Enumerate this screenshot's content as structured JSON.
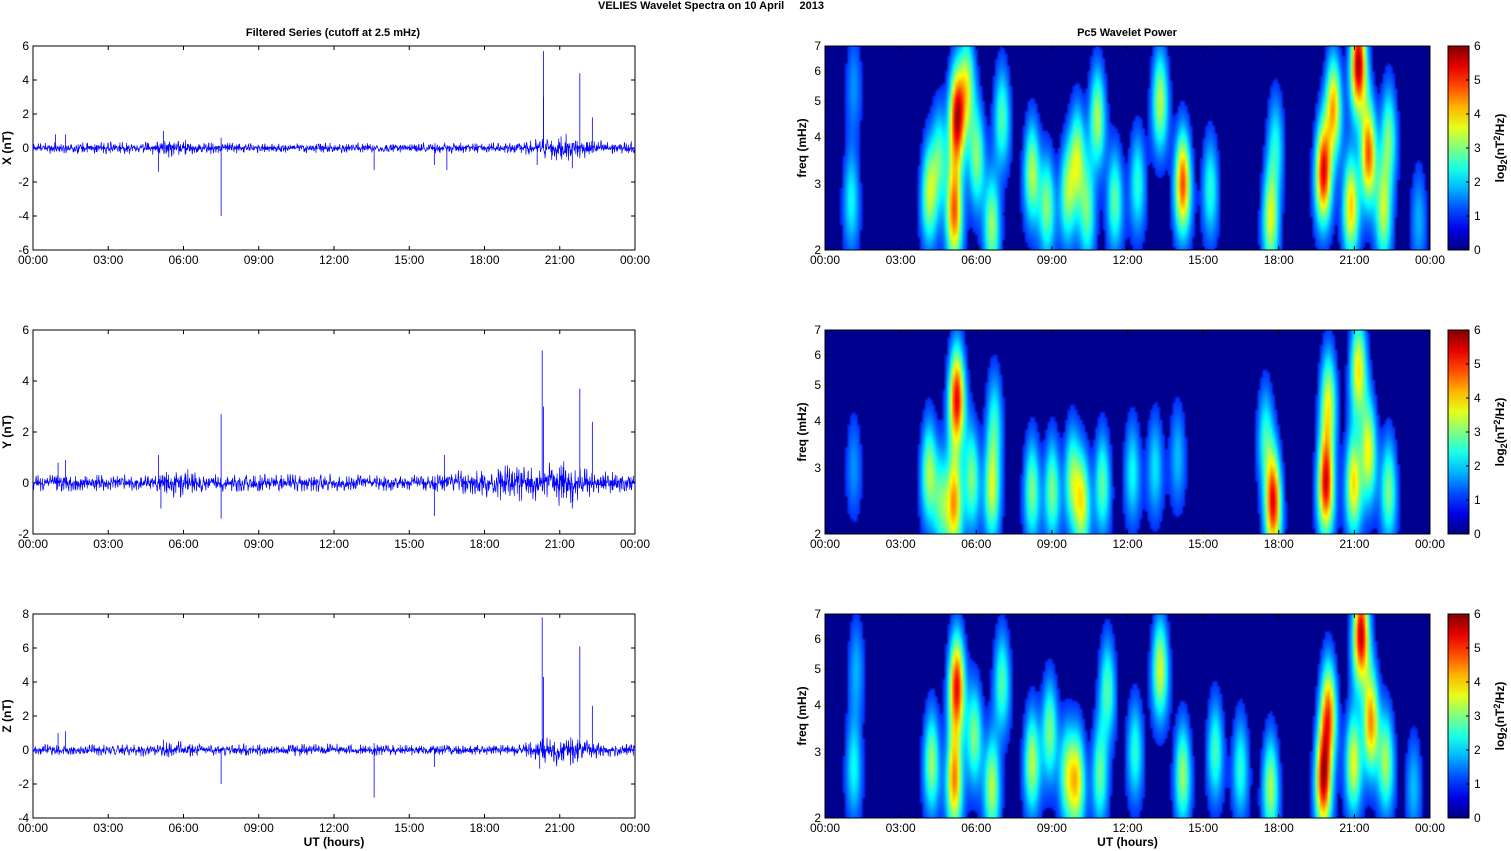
{
  "figure_title": "VELIES Wavelet Spectra on 10 April     2013",
  "left_title": "Filtered Series (cutoff at 2.5 mHz)",
  "right_title": "Pc5 Wavelet Power",
  "colors": {
    "line": "#0000ff",
    "axes": "#000000",
    "heat_bg": "#00008f"
  },
  "chart_data": [
    {
      "type": "line",
      "ylabel": "X (nT)",
      "xlabel": "",
      "x_range_hours": [
        0,
        24
      ],
      "ylim": [
        -6,
        6
      ],
      "yticks": [
        "-6",
        "-4",
        "-2",
        "0",
        "2",
        "4",
        "6"
      ],
      "xticks": [
        "00:00",
        "03:00",
        "06:00",
        "09:00",
        "12:00",
        "15:00",
        "18:00",
        "21:00",
        "00:00"
      ],
      "noise_envelope": [
        {
          "t": 0,
          "amp": 0.35
        },
        {
          "t": 5,
          "amp": 0.4
        },
        {
          "t": 5.5,
          "amp": 0.7
        },
        {
          "t": 6.5,
          "amp": 0.4
        },
        {
          "t": 9,
          "amp": 0.3
        },
        {
          "t": 19,
          "amp": 0.35
        },
        {
          "t": 20.2,
          "amp": 0.6
        },
        {
          "t": 21,
          "amp": 1.0
        },
        {
          "t": 22.5,
          "amp": 0.5
        },
        {
          "t": 24,
          "amp": 0.4
        }
      ],
      "spikes": [
        {
          "t": 0.9,
          "v": 0.8
        },
        {
          "t": 1.3,
          "v": 0.8
        },
        {
          "t": 5.0,
          "v": -1.4
        },
        {
          "t": 5.2,
          "v": 1.0
        },
        {
          "t": 7.5,
          "v": -4.0
        },
        {
          "t": 7.5,
          "v": 0.6
        },
        {
          "t": 13.6,
          "v": -1.3
        },
        {
          "t": 16.0,
          "v": -1.0
        },
        {
          "t": 16.5,
          "v": -1.3
        },
        {
          "t": 20.1,
          "v": -1.0
        },
        {
          "t": 20.35,
          "v": 5.7
        },
        {
          "t": 20.35,
          "v": 3.0
        },
        {
          "t": 21.8,
          "v": 4.4
        },
        {
          "t": 22.3,
          "v": 1.8
        },
        {
          "t": 21.5,
          "v": -1.2
        }
      ]
    },
    {
      "type": "line",
      "ylabel": "Y (nT)",
      "xlabel": "",
      "x_range_hours": [
        0,
        24
      ],
      "ylim": [
        -2,
        6
      ],
      "yticks": [
        "-2",
        "0",
        "2",
        "4",
        "6"
      ],
      "xticks": [
        "00:00",
        "03:00",
        "06:00",
        "09:00",
        "12:00",
        "15:00",
        "18:00",
        "21:00",
        "00:00"
      ],
      "noise_envelope": [
        {
          "t": 0,
          "amp": 0.35
        },
        {
          "t": 5,
          "amp": 0.4
        },
        {
          "t": 5.5,
          "amp": 0.7
        },
        {
          "t": 7,
          "amp": 0.4
        },
        {
          "t": 16,
          "amp": 0.35
        },
        {
          "t": 17.5,
          "amp": 0.6
        },
        {
          "t": 20.2,
          "amp": 0.8
        },
        {
          "t": 21,
          "amp": 1.0
        },
        {
          "t": 22.5,
          "amp": 0.5
        },
        {
          "t": 24,
          "amp": 0.4
        }
      ],
      "spikes": [
        {
          "t": 1.0,
          "v": 0.8
        },
        {
          "t": 1.3,
          "v": 0.9
        },
        {
          "t": 5.0,
          "v": 1.1
        },
        {
          "t": 5.1,
          "v": -1.0
        },
        {
          "t": 7.5,
          "v": 2.7
        },
        {
          "t": 7.5,
          "v": -1.4
        },
        {
          "t": 16.0,
          "v": -1.3
        },
        {
          "t": 16.4,
          "v": 1.1
        },
        {
          "t": 20.3,
          "v": 5.2
        },
        {
          "t": 20.35,
          "v": 3.0
        },
        {
          "t": 21.8,
          "v": 3.7
        },
        {
          "t": 22.3,
          "v": 2.4
        },
        {
          "t": 21.5,
          "v": -1.0
        }
      ]
    },
    {
      "type": "line",
      "ylabel": "Z (nT)",
      "xlabel": "UT (hours)",
      "x_range_hours": [
        0,
        24
      ],
      "ylim": [
        -4,
        8
      ],
      "yticks": [
        "-4",
        "-2",
        "0",
        "2",
        "4",
        "6",
        "8"
      ],
      "xticks": [
        "00:00",
        "03:00",
        "06:00",
        "09:00",
        "12:00",
        "15:00",
        "18:00",
        "21:00",
        "00:00"
      ],
      "noise_envelope": [
        {
          "t": 0,
          "amp": 0.35
        },
        {
          "t": 5,
          "amp": 0.4
        },
        {
          "t": 5.5,
          "amp": 0.6
        },
        {
          "t": 7,
          "amp": 0.4
        },
        {
          "t": 19,
          "amp": 0.35
        },
        {
          "t": 20.2,
          "amp": 0.7
        },
        {
          "t": 21,
          "amp": 1.1
        },
        {
          "t": 22.5,
          "amp": 0.5
        },
        {
          "t": 24,
          "amp": 0.4
        }
      ],
      "spikes": [
        {
          "t": 1.0,
          "v": 1.0
        },
        {
          "t": 1.3,
          "v": 1.1
        },
        {
          "t": 5.2,
          "v": 0.6
        },
        {
          "t": 7.5,
          "v": -2.0
        },
        {
          "t": 13.6,
          "v": -2.8
        },
        {
          "t": 13.6,
          "v": 0.4
        },
        {
          "t": 16.0,
          "v": -1.0
        },
        {
          "t": 20.3,
          "v": 7.8
        },
        {
          "t": 20.35,
          "v": 4.3
        },
        {
          "t": 21.8,
          "v": 6.1
        },
        {
          "t": 22.3,
          "v": 2.6
        },
        {
          "t": 20.2,
          "v": -1.1
        }
      ]
    },
    {
      "type": "heatmap",
      "ylabel": "freq (mHz)",
      "xlabel": "",
      "x_range_hours": [
        0,
        24
      ],
      "y_scale": "log",
      "ylim": [
        2,
        7
      ],
      "yticks": [
        "2",
        "3",
        "4",
        "5",
        "6",
        "7"
      ],
      "xticks": [
        "00:00",
        "03:00",
        "06:00",
        "09:00",
        "12:00",
        "15:00",
        "18:00",
        "21:00",
        "00:00"
      ],
      "colorbar_label": "log2(nT^2/Hz)",
      "colorbar_range": [
        0,
        6
      ],
      "colorbar_ticks": [
        "0",
        "1",
        "2",
        "3",
        "4",
        "5",
        "6"
      ],
      "colormap": "jet",
      "blobs": [
        {
          "t": 1.0,
          "f": 2.7,
          "p": 1.8
        },
        {
          "t": 1.1,
          "f": 5.5,
          "p": 1.0
        },
        {
          "t": 4.1,
          "f": 2.8,
          "p": 2.9
        },
        {
          "t": 4.5,
          "f": 3.5,
          "p": 2.2
        },
        {
          "t": 5.1,
          "f": 2.5,
          "p": 4.5
        },
        {
          "t": 5.2,
          "f": 4.5,
          "p": 5.3
        },
        {
          "t": 5.6,
          "f": 5.5,
          "p": 3.0
        },
        {
          "t": 6.0,
          "f": 3.5,
          "p": 2.6
        },
        {
          "t": 6.6,
          "f": 2.3,
          "p": 2.8
        },
        {
          "t": 7.0,
          "f": 4.5,
          "p": 2.3
        },
        {
          "t": 8.2,
          "f": 3.2,
          "p": 3.0
        },
        {
          "t": 8.8,
          "f": 2.6,
          "p": 2.6
        },
        {
          "t": 9.6,
          "f": 2.8,
          "p": 2.5
        },
        {
          "t": 10.0,
          "f": 3.5,
          "p": 3.0
        },
        {
          "t": 10.4,
          "f": 2.5,
          "p": 2.3
        },
        {
          "t": 10.8,
          "f": 4.5,
          "p": 2.9
        },
        {
          "t": 11.5,
          "f": 2.7,
          "p": 2.4
        },
        {
          "t": 12.4,
          "f": 3.0,
          "p": 2.0
        },
        {
          "t": 13.3,
          "f": 5.0,
          "p": 3.0
        },
        {
          "t": 14.2,
          "f": 3.0,
          "p": 4.7
        },
        {
          "t": 15.3,
          "f": 2.9,
          "p": 2.0
        },
        {
          "t": 17.7,
          "f": 2.4,
          "p": 3.2
        },
        {
          "t": 17.9,
          "f": 3.8,
          "p": 1.8
        },
        {
          "t": 19.8,
          "f": 3.2,
          "p": 5.2
        },
        {
          "t": 20.2,
          "f": 4.8,
          "p": 4.0
        },
        {
          "t": 20.9,
          "f": 2.6,
          "p": 3.8
        },
        {
          "t": 21.2,
          "f": 6.3,
          "p": 5.8
        },
        {
          "t": 21.6,
          "f": 3.6,
          "p": 4.6
        },
        {
          "t": 22.2,
          "f": 2.5,
          "p": 2.9
        },
        {
          "t": 22.4,
          "f": 4.0,
          "p": 2.5
        },
        {
          "t": 23.6,
          "f": 2.4,
          "p": 1.2
        }
      ]
    },
    {
      "type": "heatmap",
      "ylabel": "freq (mHz)",
      "xlabel": "",
      "x_range_hours": [
        0,
        24
      ],
      "y_scale": "log",
      "ylim": [
        2,
        7
      ],
      "yticks": [
        "2",
        "3",
        "4",
        "5",
        "6",
        "7"
      ],
      "xticks": [
        "00:00",
        "03:00",
        "06:00",
        "09:00",
        "12:00",
        "15:00",
        "18:00",
        "21:00",
        "00:00"
      ],
      "colorbar_label": "log2(nT^2/Hz)",
      "colorbar_range": [
        0,
        6
      ],
      "colorbar_ticks": [
        "0",
        "1",
        "2",
        "3",
        "4",
        "5",
        "6"
      ],
      "colormap": "jet",
      "blobs": [
        {
          "t": 1.1,
          "f": 3.0,
          "p": 1.0
        },
        {
          "t": 4.1,
          "f": 2.9,
          "p": 2.9
        },
        {
          "t": 4.6,
          "f": 2.4,
          "p": 2.2
        },
        {
          "t": 5.1,
          "f": 2.4,
          "p": 4.0
        },
        {
          "t": 5.2,
          "f": 4.6,
          "p": 5.3
        },
        {
          "t": 5.8,
          "f": 2.8,
          "p": 2.6
        },
        {
          "t": 6.6,
          "f": 2.6,
          "p": 3.0
        },
        {
          "t": 6.7,
          "f": 4.0,
          "p": 1.8
        },
        {
          "t": 8.2,
          "f": 2.6,
          "p": 2.6
        },
        {
          "t": 9.0,
          "f": 2.6,
          "p": 2.6
        },
        {
          "t": 9.8,
          "f": 2.8,
          "p": 2.6
        },
        {
          "t": 10.2,
          "f": 2.4,
          "p": 3.1
        },
        {
          "t": 11.0,
          "f": 2.7,
          "p": 2.4
        },
        {
          "t": 12.2,
          "f": 2.9,
          "p": 1.8
        },
        {
          "t": 13.1,
          "f": 3.0,
          "p": 1.6
        },
        {
          "t": 14.0,
          "f": 3.2,
          "p": 1.3
        },
        {
          "t": 17.8,
          "f": 2.4,
          "p": 5.2
        },
        {
          "t": 17.5,
          "f": 3.6,
          "p": 2.0
        },
        {
          "t": 19.9,
          "f": 2.7,
          "p": 5.3
        },
        {
          "t": 20.0,
          "f": 4.5,
          "p": 3.2
        },
        {
          "t": 21.0,
          "f": 2.7,
          "p": 3.6
        },
        {
          "t": 21.2,
          "f": 5.5,
          "p": 3.6
        },
        {
          "t": 21.6,
          "f": 3.3,
          "p": 3.4
        },
        {
          "t": 22.4,
          "f": 2.6,
          "p": 2.6
        }
      ]
    },
    {
      "type": "heatmap",
      "ylabel": "freq (mHz)",
      "xlabel": "UT (hours)",
      "x_range_hours": [
        0,
        24
      ],
      "y_scale": "log",
      "ylim": [
        2,
        7
      ],
      "yticks": [
        "2",
        "3",
        "4",
        "5",
        "6",
        "7"
      ],
      "xticks": [
        "00:00",
        "03:00",
        "06:00",
        "09:00",
        "12:00",
        "15:00",
        "18:00",
        "21:00",
        "00:00"
      ],
      "colorbar_label": "log2(nT^2/Hz)",
      "colorbar_range": [
        0,
        6
      ],
      "colorbar_ticks": [
        "0",
        "1",
        "2",
        "3",
        "4",
        "5",
        "6"
      ],
      "colormap": "jet",
      "blobs": [
        {
          "t": 1.1,
          "f": 2.7,
          "p": 1.8
        },
        {
          "t": 1.2,
          "f": 5.0,
          "p": 1.2
        },
        {
          "t": 4.2,
          "f": 2.8,
          "p": 2.8
        },
        {
          "t": 5.1,
          "f": 2.5,
          "p": 4.2
        },
        {
          "t": 5.2,
          "f": 4.5,
          "p": 5.2
        },
        {
          "t": 5.9,
          "f": 3.3,
          "p": 2.6
        },
        {
          "t": 6.6,
          "f": 2.4,
          "p": 3.0
        },
        {
          "t": 7.0,
          "f": 4.6,
          "p": 2.3
        },
        {
          "t": 8.2,
          "f": 2.8,
          "p": 3.0
        },
        {
          "t": 8.9,
          "f": 3.4,
          "p": 2.6
        },
        {
          "t": 9.6,
          "f": 2.6,
          "p": 2.6
        },
        {
          "t": 10.0,
          "f": 2.5,
          "p": 3.3
        },
        {
          "t": 10.9,
          "f": 2.6,
          "p": 2.4
        },
        {
          "t": 11.2,
          "f": 4.4,
          "p": 2.3
        },
        {
          "t": 12.3,
          "f": 3.0,
          "p": 2.0
        },
        {
          "t": 13.3,
          "f": 5.0,
          "p": 3.2
        },
        {
          "t": 14.2,
          "f": 2.6,
          "p": 2.8
        },
        {
          "t": 15.5,
          "f": 3.0,
          "p": 2.2
        },
        {
          "t": 16.5,
          "f": 2.7,
          "p": 2.0
        },
        {
          "t": 17.7,
          "f": 2.4,
          "p": 2.9
        },
        {
          "t": 19.8,
          "f": 2.5,
          "p": 5.3
        },
        {
          "t": 20.0,
          "f": 3.8,
          "p": 4.5
        },
        {
          "t": 21.0,
          "f": 2.8,
          "p": 3.3
        },
        {
          "t": 21.3,
          "f": 6.2,
          "p": 5.6
        },
        {
          "t": 21.7,
          "f": 3.6,
          "p": 4.2
        },
        {
          "t": 22.3,
          "f": 2.8,
          "p": 2.8
        },
        {
          "t": 23.4,
          "f": 2.4,
          "p": 1.3
        }
      ]
    }
  ]
}
